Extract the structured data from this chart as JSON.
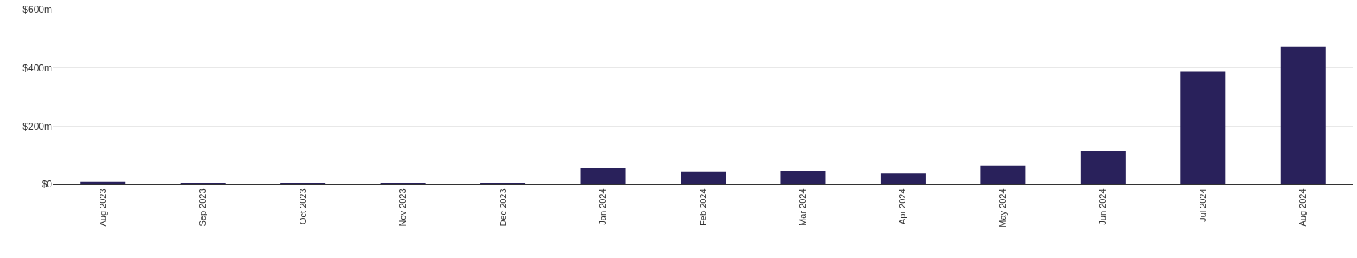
{
  "chart_data": {
    "type": "bar",
    "categories": [
      "Aug 2023",
      "Sep 2023",
      "Oct 2023",
      "Nov 2023",
      "Dec 2023",
      "Jan 2024",
      "Feb 2024",
      "Mar 2024",
      "Apr 2024",
      "May 2024",
      "Jun 2024",
      "Jul 2024",
      "Aug 2024"
    ],
    "values": [
      9,
      3,
      5,
      5,
      5,
      55,
      42,
      47,
      38,
      64,
      113,
      387,
      471
    ],
    "color": "#29215b",
    "ylim": [
      0,
      600
    ],
    "yticks": [
      {
        "value": 0,
        "label": "$0"
      },
      {
        "value": 200,
        "label": "$200m"
      },
      {
        "value": 400,
        "label": "$400m"
      },
      {
        "value": 600,
        "label": "$600m"
      }
    ],
    "grid": "y"
  }
}
